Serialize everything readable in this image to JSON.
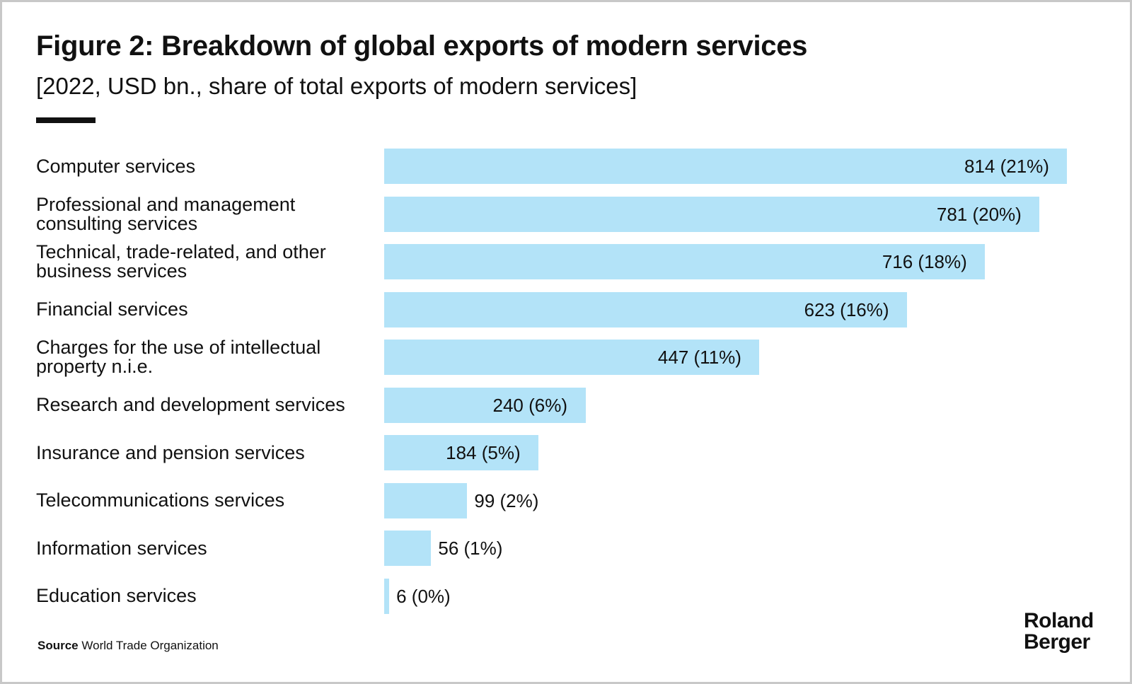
{
  "chart_data": {
    "type": "bar",
    "orientation": "horizontal",
    "title": "Figure 2: Breakdown of global exports of modern services",
    "subtitle": "[2022, USD bn., share of total exports of modern services]",
    "categories": [
      "Computer services",
      "Professional and management consulting services",
      "Technical, trade-related, and other business services",
      "Financial services",
      "Charges for the use of intellectual property n.i.e.",
      "Research and development services",
      "Insurance and pension services",
      "Telecommunications services",
      "Information services",
      "Education services"
    ],
    "values": [
      814,
      781,
      716,
      623,
      447,
      240,
      184,
      99,
      56,
      6
    ],
    "value_labels": [
      "814 (21%)",
      "781 (20%)",
      "716 (18%)",
      "623 (16%)",
      "447 (11%)",
      "240 (6%)",
      "184 (5%)",
      "99 (2%)",
      "56 (1%)",
      "6 (0%)"
    ],
    "color": "#b3e3f8",
    "source": {
      "label": "Source",
      "text": "World Trade Organization"
    },
    "logo": [
      "Roland",
      "Berger"
    ]
  }
}
